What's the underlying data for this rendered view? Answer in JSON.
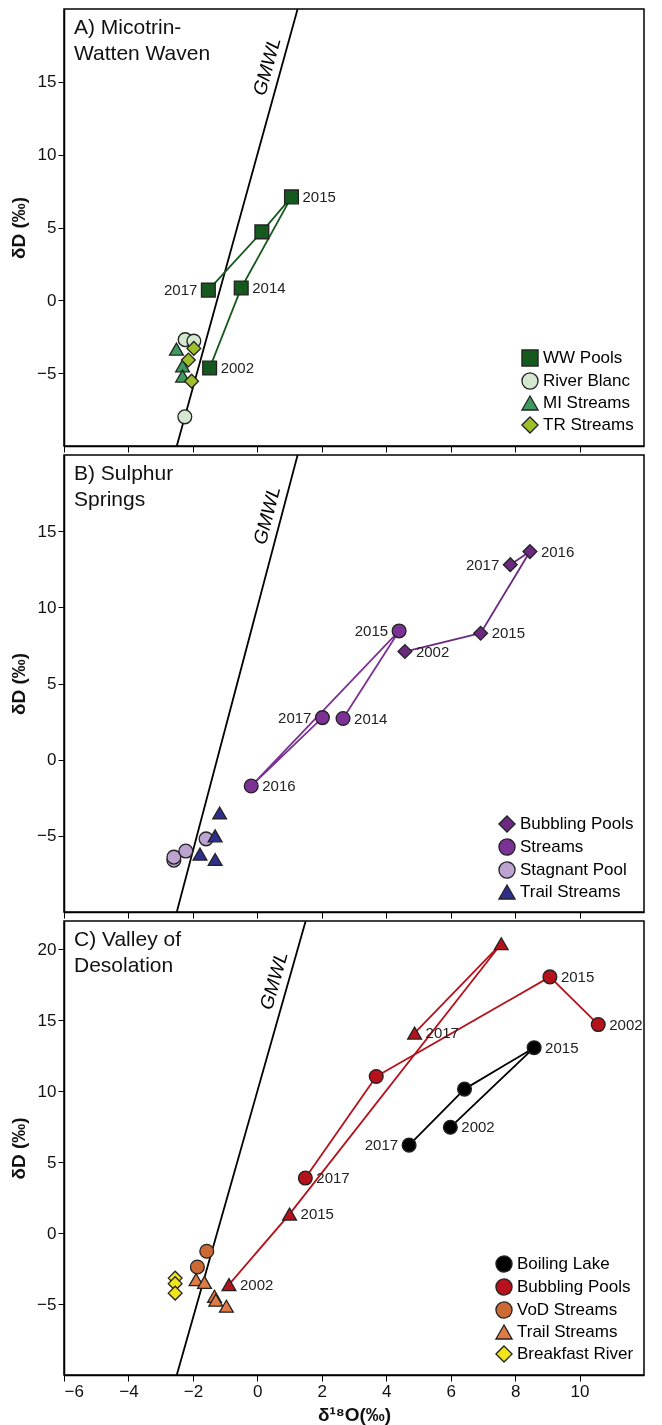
{
  "chart_data": [
    {
      "type": "scatter",
      "title": "A) Micotrin-\nWatten Waven",
      "ylabel": "δD (‰)",
      "xlim": [
        -6,
        12
      ],
      "ylim": [
        -10,
        20
      ],
      "xticks": [
        -6,
        -4,
        -2,
        0,
        2,
        4,
        6,
        8,
        10
      ],
      "yticks": [
        -5,
        0,
        5,
        10,
        15
      ],
      "tick_labels": "y",
      "legend": "bottom right",
      "series": [
        {
          "name": "GMWL",
          "type": "line",
          "marker": "none",
          "color": "#000000",
          "x": [
            -2.5,
            1.25
          ],
          "values": [
            -10,
            20
          ]
        },
        {
          "name": "WW Pools",
          "type": "line",
          "marker": "square",
          "color": "#16591f",
          "x": [
            -1.48,
            -0.5,
            1.06,
            0.14,
            -1.52
          ],
          "values": [
            -4.65,
            0.85,
            7.1,
            4.7,
            0.7
          ]
        },
        {
          "name": "River Blanc",
          "type": "scatter",
          "marker": "circle",
          "color": "#d4e8d0",
          "x": [
            -2.24,
            -1.97,
            -2.25
          ],
          "values": [
            -2.7,
            -2.8,
            -8.0
          ]
        },
        {
          "name": "MI Streams",
          "type": "scatter",
          "marker": "triangle",
          "color": "#3f9a60",
          "x": [
            -2.51,
            -2.32,
            -2.32
          ],
          "values": [
            -3.35,
            -4.5,
            -5.2
          ]
        },
        {
          "name": "TR Streams",
          "type": "scatter",
          "marker": "diamond",
          "color": "#9dc02a",
          "x": [
            -1.97,
            -2.14,
            -2.04
          ],
          "values": [
            -3.3,
            -4.1,
            -5.55
          ]
        }
      ],
      "annotations": [
        {
          "text": "2002",
          "x": -1.48,
          "y": -4.65
        },
        {
          "text": "2014",
          "x": -0.5,
          "y": 0.85
        },
        {
          "text": "2015",
          "x": 1.06,
          "y": 7.1
        },
        {
          "text": "2017",
          "x": -1.52,
          "y": 0.7
        }
      ]
    },
    {
      "type": "scatter",
      "title": "B) Sulphur\nSprings",
      "ylabel": "δD (‰)",
      "xlim": [
        -6,
        12
      ],
      "ylim": [
        -10,
        20
      ],
      "xticks": [
        -6,
        -4,
        -2,
        0,
        2,
        4,
        6,
        8,
        10
      ],
      "yticks": [
        -5,
        0,
        5,
        10,
        15
      ],
      "tick_labels": "y",
      "legend": "bottom right",
      "series": [
        {
          "name": "GMWL",
          "type": "line",
          "marker": "none",
          "color": "#000000",
          "x": [
            -2.5,
            1.25
          ],
          "values": [
            -10,
            20
          ]
        },
        {
          "name": "Bubbling Pools",
          "type": "line",
          "marker": "diamond",
          "color": "#6b2a80",
          "x": [
            4.58,
            6.93,
            8.46,
            7.85
          ],
          "values": [
            7.1,
            8.3,
            13.66,
            12.8
          ]
        },
        {
          "name": "Streams",
          "type": "line",
          "marker": "circle",
          "color": "#7b3294",
          "x": [
            2.66,
            4.4,
            -0.19,
            2.02
          ],
          "values": [
            2.7,
            8.45,
            -1.73,
            2.76
          ]
        },
        {
          "name": "Stagnant Pool",
          "type": "scatter",
          "marker": "circle",
          "color": "#bca3d0",
          "x": [
            -2.59,
            -2.59,
            -2.22,
            -1.59
          ],
          "values": [
            -6.6,
            -6.4,
            -6.0,
            -5.2
          ]
        },
        {
          "name": "Trail Streams",
          "type": "scatter",
          "marker": "triangle",
          "color": "#2e2f8c",
          "x": [
            -1.17,
            -1.31,
            -1.78,
            -1.31
          ],
          "values": [
            -3.5,
            -5.0,
            -6.2,
            -6.55
          ]
        }
      ],
      "annotations": [
        {
          "text": "2002",
          "x": 4.58,
          "y": 7.1
        },
        {
          "text": "2015",
          "x": 6.93,
          "y": 8.3
        },
        {
          "text": "2016",
          "x": 8.46,
          "y": 13.66
        },
        {
          "text": "2017",
          "x": 7.85,
          "y": 12.8
        },
        {
          "text": "2014",
          "x": 2.66,
          "y": 2.7
        },
        {
          "text": "2015",
          "x": 4.4,
          "y": 8.45
        },
        {
          "text": "2016",
          "x": -0.19,
          "y": -1.73
        },
        {
          "text": "2017",
          "x": 2.02,
          "y": 2.76
        }
      ]
    },
    {
      "type": "scatter",
      "title": "C) Valley of\nDesolation",
      "ylabel": "δD (‰)",
      "xlabel": "δ¹⁸O(‰)",
      "xlim": [
        -6,
        12
      ],
      "ylim": [
        -10,
        22
      ],
      "xticks": [
        -6,
        -4,
        -2,
        0,
        2,
        4,
        6,
        8,
        10
      ],
      "yticks": [
        -5,
        0,
        5,
        10,
        15,
        20
      ],
      "legend": "bottom right",
      "series": [
        {
          "name": "GMWL",
          "type": "line",
          "marker": "none",
          "color": "#000000",
          "x": [
            -2.5,
            1.5
          ],
          "values": [
            -10,
            22
          ]
        },
        {
          "name": "Boiling Lake",
          "type": "line",
          "marker": "circle",
          "color": "#000000",
          "x": [
            5.99,
            8.59,
            6.43,
            4.71
          ],
          "values": [
            7.46,
            13.07,
            10.15,
            6.2
          ]
        },
        {
          "name": "Bubbling Pools",
          "type": "line",
          "marker": "circle",
          "color": "#b5121b",
          "x": [
            10.58,
            9.08,
            3.69,
            1.49
          ],
          "values": [
            14.7,
            18.06,
            11.04,
            3.88
          ]
        },
        {
          "type": "line",
          "marker": "triangle",
          "color": "#b5121b",
          "x": [
            -0.88,
            1.0,
            7.57,
            4.88
          ],
          "values": [
            -3.63,
            1.34,
            20.4,
            14.1
          ]
        },
        {
          "name": "VoD Streams",
          "type": "scatter",
          "marker": "circle",
          "color": "#cc6a35",
          "x": [
            -1.57,
            -1.86
          ],
          "values": [
            -1.28,
            -2.39
          ]
        },
        {
          "name": "Trail Streams",
          "type": "scatter",
          "marker": "triangle",
          "color": "#e07b45",
          "x": [
            -1.9,
            -1.64,
            -1.33,
            -1.29,
            -0.96
          ],
          "values": [
            -3.28,
            -3.47,
            -4.45,
            -4.73,
            -5.15
          ]
        },
        {
          "name": "Breakfast River",
          "type": "scatter",
          "marker": "diamond",
          "color": "#f0e51a",
          "x": [
            -2.55,
            -2.55,
            -2.55
          ],
          "values": [
            -3.17,
            -3.56,
            -4.23
          ]
        }
      ],
      "annotations": [
        {
          "text": "2002",
          "x": 5.99,
          "y": 7.46
        },
        {
          "text": "2015",
          "x": 8.59,
          "y": 13.07
        },
        {
          "text": "2017",
          "x": 4.71,
          "y": 6.2
        },
        {
          "text": "2002",
          "x": 10.58,
          "y": 14.7
        },
        {
          "text": "2015",
          "x": 9.08,
          "y": 18.06
        },
        {
          "text": "2017",
          "x": 1.49,
          "y": 3.88
        },
        {
          "text": "2002",
          "x": -0.88,
          "y": -3.63
        },
        {
          "text": "2015",
          "x": 1.0,
          "y": 1.34
        },
        {
          "text": "2017",
          "x": 4.88,
          "y": 14.1
        }
      ]
    }
  ]
}
